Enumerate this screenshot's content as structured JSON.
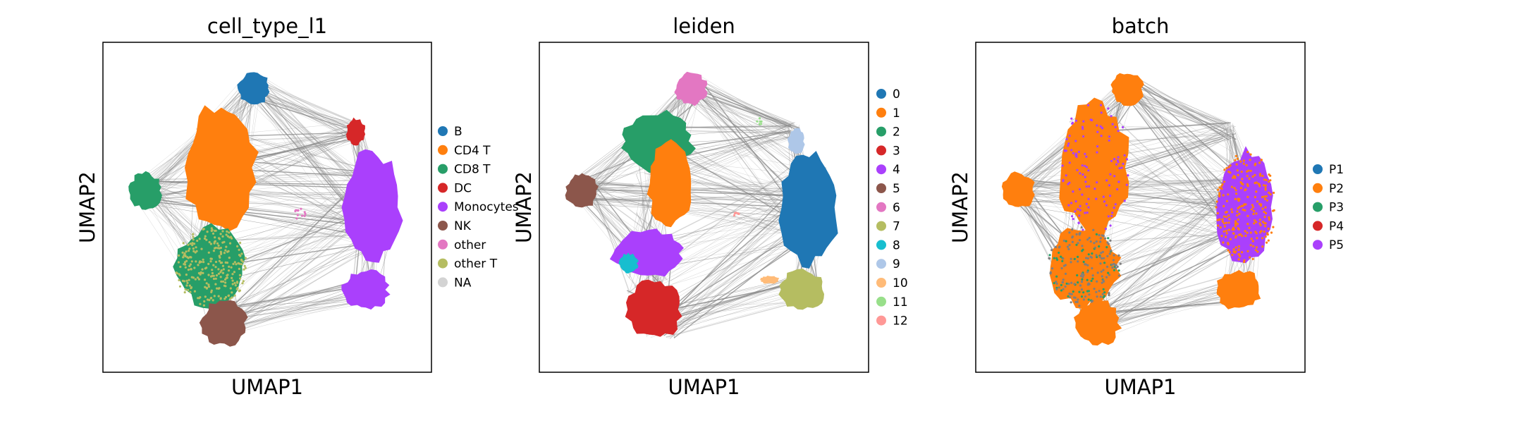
{
  "chart_data": [
    {
      "type": "scatter",
      "title": "cell_type_l1",
      "xlabel": "UMAP1",
      "ylabel": "UMAP2",
      "grid": false,
      "ticks": false,
      "legend": "right",
      "series": [
        {
          "name": "B",
          "color": "#1f77b4"
        },
        {
          "name": "CD4 T",
          "color": "#ff7f0e"
        },
        {
          "name": "CD8 T",
          "color": "#279e68"
        },
        {
          "name": "DC",
          "color": "#d62728"
        },
        {
          "name": "Monocytes",
          "color": "#aa40fc"
        },
        {
          "name": "NK",
          "color": "#8c564b"
        },
        {
          "name": "other",
          "color": "#e377c2"
        },
        {
          "name": "other T",
          "color": "#b5bd61"
        },
        {
          "name": "NA",
          "color": "#d3d3d3"
        }
      ]
    },
    {
      "type": "scatter",
      "title": "leiden",
      "xlabel": "UMAP1",
      "ylabel": "UMAP2",
      "grid": false,
      "ticks": false,
      "legend": "right",
      "series": [
        {
          "name": "0",
          "color": "#1f77b4"
        },
        {
          "name": "1",
          "color": "#ff7f0e"
        },
        {
          "name": "2",
          "color": "#279e68"
        },
        {
          "name": "3",
          "color": "#d62728"
        },
        {
          "name": "4",
          "color": "#aa40fc"
        },
        {
          "name": "5",
          "color": "#8c564b"
        },
        {
          "name": "6",
          "color": "#e377c2"
        },
        {
          "name": "7",
          "color": "#b5bd61"
        },
        {
          "name": "8",
          "color": "#17becf"
        },
        {
          "name": "9",
          "color": "#aec7e8"
        },
        {
          "name": "10",
          "color": "#ffbb78"
        },
        {
          "name": "11",
          "color": "#98df8a"
        },
        {
          "name": "12",
          "color": "#ff9896"
        }
      ]
    },
    {
      "type": "scatter",
      "title": "batch",
      "xlabel": "UMAP1",
      "ylabel": "UMAP2",
      "grid": false,
      "ticks": false,
      "legend": "right",
      "series": [
        {
          "name": "P1",
          "color": "#1f77b4"
        },
        {
          "name": "P2",
          "color": "#ff7f0e"
        },
        {
          "name": "P3",
          "color": "#279e68"
        },
        {
          "name": "P4",
          "color": "#d62728"
        },
        {
          "name": "P5",
          "color": "#aa40fc"
        }
      ]
    }
  ]
}
